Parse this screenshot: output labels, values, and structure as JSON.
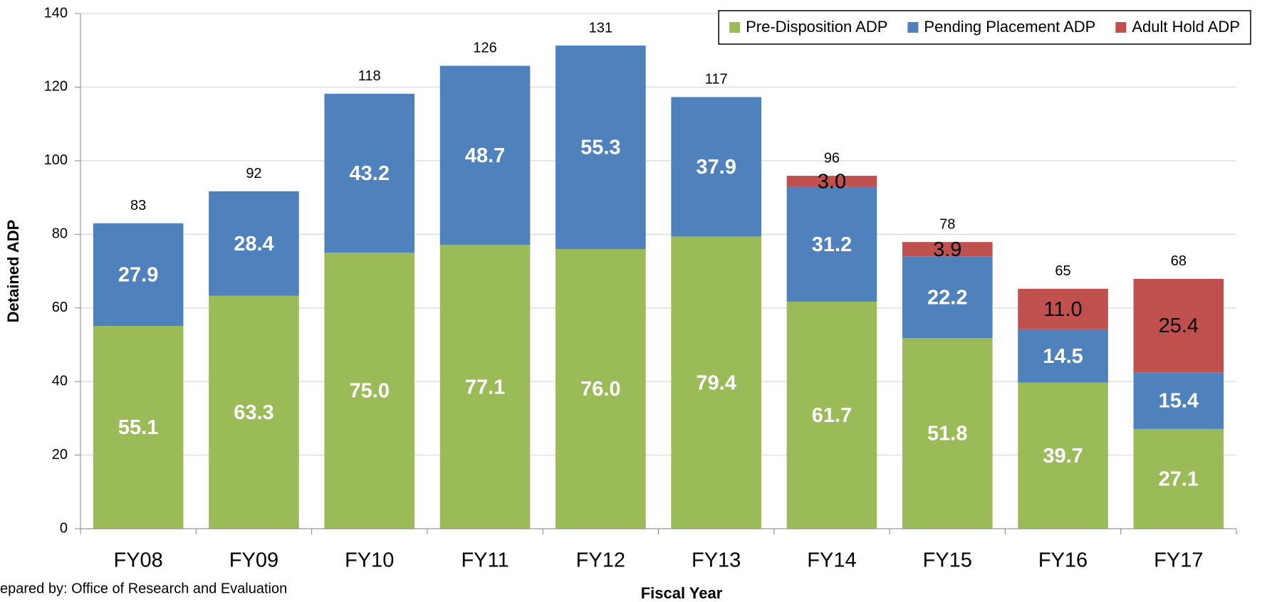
{
  "chart_data": {
    "type": "stacked_bar",
    "x_label": "Fiscal Year",
    "y_label": "Detained ADP",
    "footnote": "epared by: Office of Research and Evaluation",
    "categories": [
      "FY08",
      "FY09",
      "FY10",
      "FY11",
      "FY12",
      "FY13",
      "FY14",
      "FY15",
      "FY16",
      "FY17"
    ],
    "series": [
      {
        "name": "Pre-Disposition ADP",
        "color": "#9bbb59",
        "label_color": "#ffffff",
        "label_bold": true,
        "values": [
          55.1,
          63.3,
          75.0,
          77.1,
          76.0,
          79.4,
          61.7,
          51.8,
          39.7,
          27.1
        ],
        "value_labels": [
          "55.1",
          "63.3",
          "75.0",
          "77.1",
          "76.0",
          "79.4",
          "61.7",
          "51.8",
          "39.7",
          "27.1"
        ]
      },
      {
        "name": "Pending Placement ADP",
        "color": "#4f81bd",
        "label_color": "#ffffff",
        "label_bold": true,
        "values": [
          27.9,
          28.4,
          43.2,
          48.7,
          55.3,
          37.9,
          31.2,
          22.2,
          14.5,
          15.4
        ],
        "value_labels": [
          "27.9",
          "28.4",
          "43.2",
          "48.7",
          "55.3",
          "37.9",
          "31.2",
          "22.2",
          "14.5",
          "15.4"
        ]
      },
      {
        "name": "Adult Hold ADP",
        "color": "#c0504d",
        "label_color": "#000000",
        "label_bold": false,
        "values": [
          null,
          null,
          null,
          null,
          null,
          null,
          3.0,
          3.9,
          11.0,
          25.4
        ],
        "value_labels": [
          null,
          null,
          null,
          null,
          null,
          null,
          "3.0",
          "3.9",
          "11.0",
          "25.4"
        ]
      }
    ],
    "totals": [
      83,
      92,
      118,
      126,
      131,
      117,
      96,
      78,
      65,
      68
    ],
    "ylim": [
      0,
      140
    ],
    "yticks": [
      0,
      20,
      40,
      60,
      80,
      100,
      120,
      140
    ],
    "grid": true,
    "legend": "top-right"
  }
}
